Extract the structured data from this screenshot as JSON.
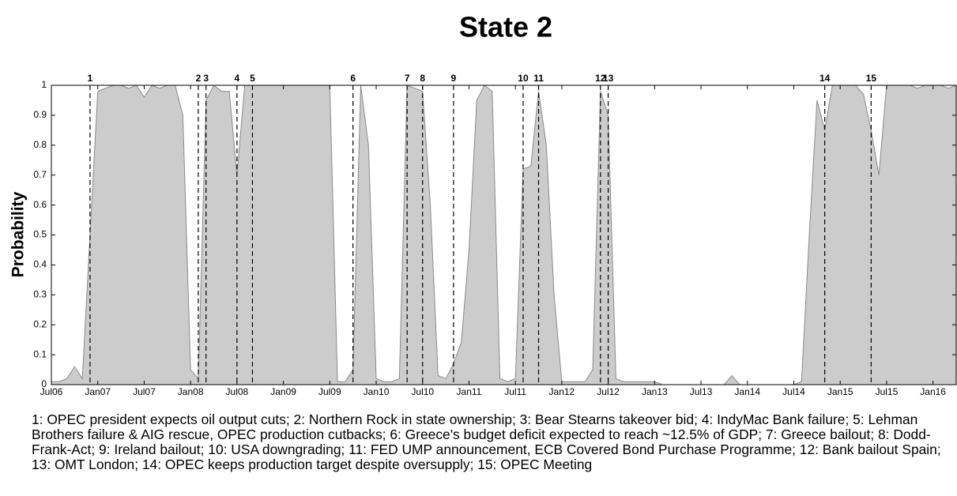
{
  "chart_data": {
    "type": "area",
    "title": "State 2",
    "ylabel": "Probability",
    "color": "#cccccc",
    "x": [
      "2006-07",
      "2006-08",
      "2006-09",
      "2006-10",
      "2006-11",
      "2006-12",
      "2007-01",
      "2007-02",
      "2007-03",
      "2007-04",
      "2007-05",
      "2007-06",
      "2007-07",
      "2007-08",
      "2007-09",
      "2007-10",
      "2007-11",
      "2007-12",
      "2008-01",
      "2008-02",
      "2008-03",
      "2008-04",
      "2008-05",
      "2008-06",
      "2008-07",
      "2008-08",
      "2008-09",
      "2008-10",
      "2008-11",
      "2008-12",
      "2009-01",
      "2009-02",
      "2009-03",
      "2009-04",
      "2009-05",
      "2009-06",
      "2009-07",
      "2009-08",
      "2009-09",
      "2009-10",
      "2009-11",
      "2009-12",
      "2010-01",
      "2010-02",
      "2010-03",
      "2010-04",
      "2010-05",
      "2010-06",
      "2010-07",
      "2010-08",
      "2010-09",
      "2010-10",
      "2010-11",
      "2010-12",
      "2011-01",
      "2011-02",
      "2011-03",
      "2011-04",
      "2011-05",
      "2011-06",
      "2011-07",
      "2011-08",
      "2011-09",
      "2011-10",
      "2011-11",
      "2011-12",
      "2012-01",
      "2012-02",
      "2012-03",
      "2012-04",
      "2012-05",
      "2012-06",
      "2012-07",
      "2012-08",
      "2012-09",
      "2012-10",
      "2012-11",
      "2012-12",
      "2013-01",
      "2013-02",
      "2013-03",
      "2013-04",
      "2013-05",
      "2013-06",
      "2013-07",
      "2013-08",
      "2013-09",
      "2013-10",
      "2013-11",
      "2013-12",
      "2014-01",
      "2014-02",
      "2014-03",
      "2014-04",
      "2014-05",
      "2014-06",
      "2014-07",
      "2014-08",
      "2014-09",
      "2014-10",
      "2014-11",
      "2014-12",
      "2015-01",
      "2015-02",
      "2015-03",
      "2015-04",
      "2015-05",
      "2015-06",
      "2015-07",
      "2015-08",
      "2015-09",
      "2015-10",
      "2015-11",
      "2015-12",
      "2016-01",
      "2016-02",
      "2016-03",
      "2016-04"
    ],
    "values": [
      0.01,
      0.01,
      0.02,
      0.06,
      0.02,
      0.5,
      0.98,
      0.99,
      1,
      1,
      0.99,
      1,
      0.96,
      1,
      0.99,
      1,
      1,
      0.9,
      0.05,
      0.02,
      0.95,
      1,
      0.98,
      0.98,
      0.7,
      1,
      1,
      1,
      1,
      1,
      1,
      1,
      1,
      1,
      1,
      1,
      1,
      0.01,
      0.01,
      0.05,
      1,
      0.8,
      0.02,
      0.01,
      0.01,
      0.02,
      1,
      0.99,
      0.98,
      0.6,
      0.03,
      0.02,
      0.07,
      0.14,
      0.45,
      0.95,
      1,
      0.98,
      0.02,
      0.01,
      0.02,
      0.72,
      0.73,
      0.98,
      0.8,
      0.3,
      0.01,
      0.01,
      0.01,
      0.01,
      0.05,
      0.98,
      0.9,
      0.02,
      0.01,
      0.01,
      0.01,
      0.01,
      0.01,
      0,
      0,
      0,
      0,
      0,
      0,
      0,
      0,
      0,
      0.03,
      0,
      0,
      0,
      0,
      0,
      0,
      0,
      0,
      0.01,
      0.5,
      0.95,
      0.85,
      1,
      1,
      1,
      1,
      0.97,
      0.85,
      0.7,
      1,
      1,
      1,
      1,
      0.99,
      1,
      1,
      1,
      0.99,
      1
    ],
    "xlim": [
      "2006-07",
      "2016-04"
    ],
    "xticks": [
      {
        "value": "2006-07",
        "label": "Jul06"
      },
      {
        "value": "2007-01",
        "label": "Jan07"
      },
      {
        "value": "2007-07",
        "label": "Jul07"
      },
      {
        "value": "2008-01",
        "label": "Jan08"
      },
      {
        "value": "2008-07",
        "label": "Jul08"
      },
      {
        "value": "2009-01",
        "label": "Jan09"
      },
      {
        "value": "2009-07",
        "label": "Jul09"
      },
      {
        "value": "2010-01",
        "label": "Jan10"
      },
      {
        "value": "2010-07",
        "label": "Jul10"
      },
      {
        "value": "2011-01",
        "label": "Jan11"
      },
      {
        "value": "2011-07",
        "label": "Jul11"
      },
      {
        "value": "2012-01",
        "label": "Jan12"
      },
      {
        "value": "2012-07",
        "label": "Jul12"
      },
      {
        "value": "2013-01",
        "label": "Jan13"
      },
      {
        "value": "2013-07",
        "label": "Jul13"
      },
      {
        "value": "2014-01",
        "label": "Jan14"
      },
      {
        "value": "2014-07",
        "label": "Jul14"
      },
      {
        "value": "2015-01",
        "label": "Jan15"
      },
      {
        "value": "2015-07",
        "label": "Jul15"
      },
      {
        "value": "2016-01",
        "label": "Jan16"
      }
    ],
    "ylim": [
      0,
      1
    ],
    "yticks": [
      0,
      0.1,
      0.2,
      0.3,
      0.4,
      0.5,
      0.6,
      0.7,
      0.8,
      0.9,
      1
    ],
    "events": [
      {
        "label": "1",
        "x": "2006-12"
      },
      {
        "label": "2",
        "x": "2008-02"
      },
      {
        "label": "3",
        "x": "2008-03"
      },
      {
        "label": "4",
        "x": "2008-07"
      },
      {
        "label": "5",
        "x": "2008-09"
      },
      {
        "label": "6",
        "x": "2009-10"
      },
      {
        "label": "7",
        "x": "2010-05"
      },
      {
        "label": "8",
        "x": "2010-07"
      },
      {
        "label": "9",
        "x": "2010-11"
      },
      {
        "label": "10",
        "x": "2011-08"
      },
      {
        "label": "11",
        "x": "2011-10"
      },
      {
        "label": "12",
        "x": "2012-06"
      },
      {
        "label": "13",
        "x": "2012-07"
      },
      {
        "label": "14",
        "x": "2014-11"
      },
      {
        "label": "15",
        "x": "2015-05"
      }
    ],
    "caption": "1: OPEC president expects oil output cuts; 2: Northern Rock in state ownership; 3: Bear Stearns takeover bid; 4: IndyMac Bank failure; 5: Lehman Brothers failure & AIG rescue, OPEC production cutbacks; 6: Greece's budget deficit expected to reach ~12.5% of GDP; 7: Greece bailout; 8: Dodd-Frank-Act; 9: Ireland bailout; 10: USA downgrading; 11: FED UMP announcement, ECB Covered Bond Purchase Programme; 12: Bank bailout Spain; 13: OMT London; 14: OPEC keeps production target despite oversupply; 15: OPEC Meeting"
  }
}
